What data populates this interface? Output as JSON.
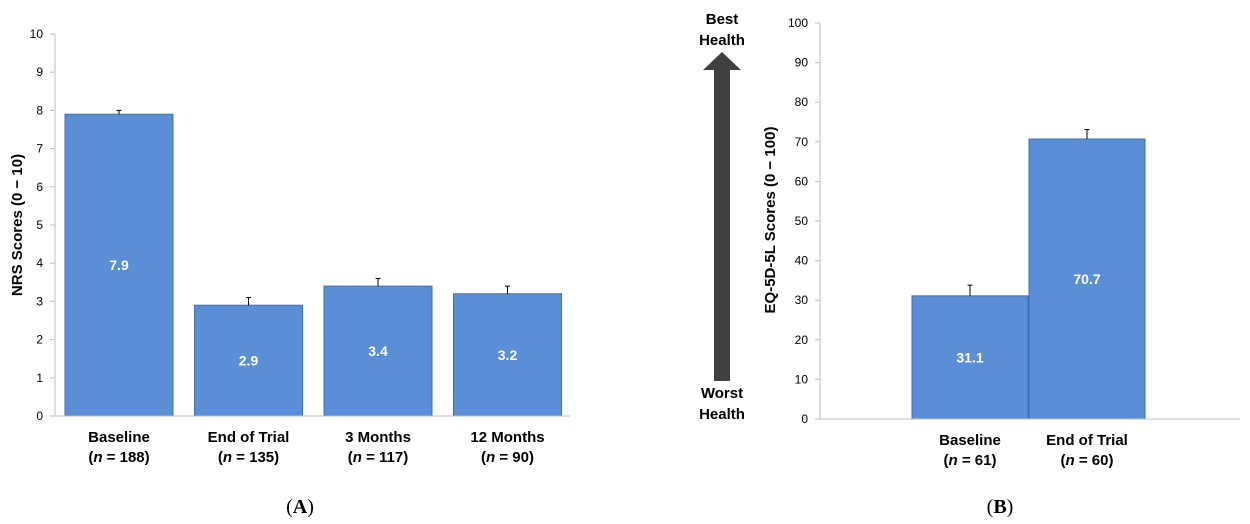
{
  "chart_data": [
    {
      "type": "bar",
      "panel_label": "A",
      "ylabel": "NRS Scores (0 − 10)",
      "ylim": [
        0,
        10
      ],
      "yticks": [
        "0",
        "1",
        "2",
        "3",
        "4",
        "5",
        "6",
        "7",
        "8",
        "9",
        "10"
      ],
      "categories": [
        {
          "name": "Baseline",
          "n": "188"
        },
        {
          "name": "End of Trial",
          "n": "135"
        },
        {
          "name": "3 Months",
          "n": "117"
        },
        {
          "name": "12 Months",
          "n": "90"
        }
      ],
      "values": [
        7.9,
        2.9,
        3.4,
        3.2
      ],
      "value_labels": [
        "7.9",
        "2.9",
        "3.4",
        "3.2"
      ],
      "error_upper": [
        8.0,
        3.1,
        3.6,
        3.4
      ],
      "bar_color": "#5a8ed6",
      "grid": false
    },
    {
      "type": "bar",
      "panel_label": "B",
      "ylabel": "EQ-5D-5L Scores (0 − 100)",
      "ylim": [
        0,
        100
      ],
      "yticks": [
        "0",
        "10",
        "20",
        "30",
        "40",
        "50",
        "60",
        "70",
        "80",
        "90",
        "100"
      ],
      "categories": [
        {
          "name": "Baseline",
          "n": "61"
        },
        {
          "name": "End of Trial",
          "n": "60"
        }
      ],
      "values": [
        31.1,
        70.7
      ],
      "value_labels": [
        "31.1",
        "70.7"
      ],
      "error_upper": [
        33.8,
        73.1
      ],
      "bar_color": "#5a8ed6",
      "grid": false,
      "arrow": {
        "top_label": [
          "Best",
          "Health"
        ],
        "bottom_label": [
          "Worst",
          "Health"
        ],
        "color": "#404040"
      }
    }
  ]
}
